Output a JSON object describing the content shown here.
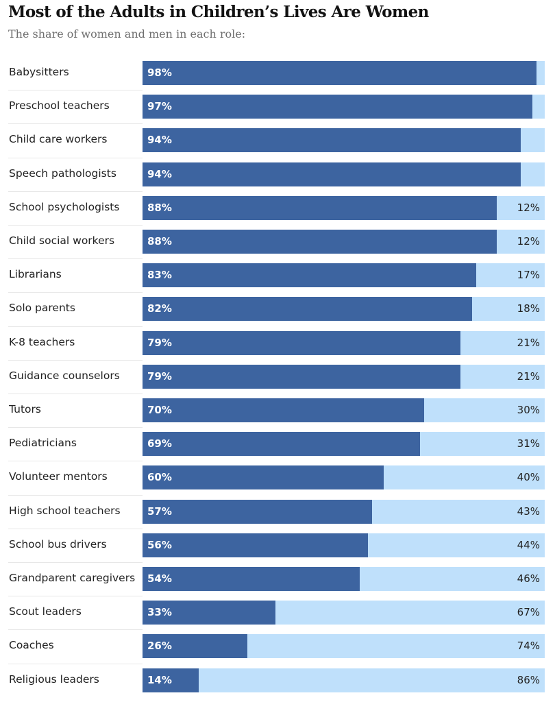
{
  "chart_data": {
    "type": "bar",
    "title": "Most of the Adults in Children’s Lives Are Women",
    "subtitle": "The share of women and men in each role:",
    "categories": [
      "Babysitters",
      "Preschool teachers",
      "Child care workers",
      "Speech pathologists",
      "School psychologists",
      "Child social workers",
      "Librarians",
      "Solo parents",
      "K-8 teachers",
      "Guidance counselors",
      "Tutors",
      "Pediatricians",
      "Volunteer mentors",
      "High school teachers",
      "School bus drivers",
      "Grandparent caregivers",
      "Scout leaders",
      "Coaches",
      "Religious leaders"
    ],
    "series": [
      {
        "values": [
          98,
          97,
          94,
          94,
          88,
          88,
          83,
          82,
          79,
          79,
          70,
          69,
          60,
          57,
          56,
          54,
          33,
          26,
          14
        ],
        "color": "#3d64a0"
      },
      {
        "values": [
          2,
          3,
          6,
          6,
          12,
          12,
          17,
          18,
          21,
          21,
          30,
          31,
          40,
          43,
          44,
          46,
          67,
          74,
          86
        ],
        "color": "#bfe0fb"
      }
    ],
    "women_labels": [
      "98%",
      "97%",
      "94%",
      "94%",
      "88%",
      "88%",
      "83%",
      "82%",
      "79%",
      "79%",
      "70%",
      "69%",
      "60%",
      "57%",
      "56%",
      "54%",
      "33%",
      "26%",
      "14%"
    ],
    "men_labels": [
      "",
      "",
      "",
      "",
      "12%",
      "12%",
      "17%",
      "18%",
      "21%",
      "21%",
      "30%",
      "31%",
      "40%",
      "43%",
      "44%",
      "46%",
      "67%",
      "74%",
      "86%"
    ],
    "stacked": true,
    "orientation": "horizontal",
    "xlim": [
      0,
      100
    ]
  }
}
